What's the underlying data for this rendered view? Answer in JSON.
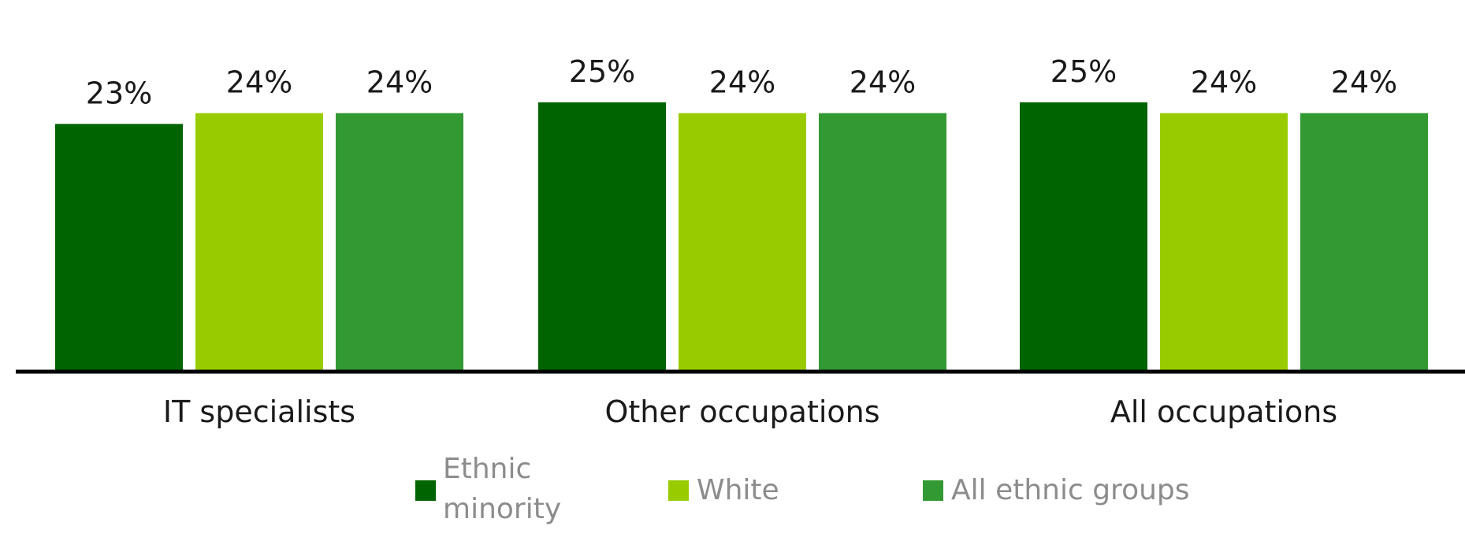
{
  "chart_data": {
    "type": "bar",
    "title": "",
    "xlabel": "",
    "ylabel": "",
    "categories": [
      "IT specialists",
      "Other occupations",
      "All occupations"
    ],
    "series": [
      {
        "name": "Ethnic minority",
        "color": "#006400",
        "values": [
          23,
          25,
          25
        ],
        "labels": [
          "23%",
          "25%",
          "25%"
        ]
      },
      {
        "name": "White",
        "color": "#99cc00",
        "values": [
          24,
          24,
          24
        ],
        "labels": [
          "24%",
          "24%",
          "24%"
        ]
      },
      {
        "name": "All ethnic groups",
        "color": "#339933",
        "values": [
          24,
          24,
          24
        ],
        "labels": [
          "24%",
          "24%",
          "24%"
        ]
      }
    ],
    "ylim": [
      0,
      25
    ],
    "grid": false,
    "legend_position": "bottom"
  }
}
